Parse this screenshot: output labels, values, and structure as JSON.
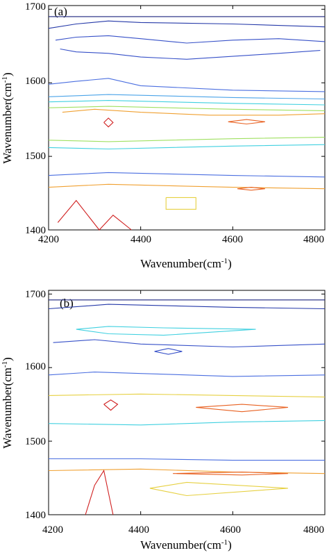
{
  "figure": {
    "background": "#ffffff",
    "panels": [
      {
        "label": "(a)",
        "xlabel": "Wavenumber(cm",
        "xlabel_sup": "-1",
        "xlabel_close": ")",
        "ylabel": "Wavenumber(cm",
        "ylabel_sup": "-1",
        "ylabel_close": ")",
        "xticks": [
          "4200",
          "4400",
          "4600",
          "4800"
        ],
        "yticks": [
          "1700",
          "1600",
          "1500",
          "1400"
        ]
      },
      {
        "label": "(b)",
        "xlabel": "Wavenumber(cm",
        "xlabel_sup": "-1",
        "xlabel_close": ")",
        "ylabel": "Wavenumber(cm",
        "ylabel_sup": "-1",
        "ylabel_close": ")",
        "xticks": [
          "4200",
          "4400",
          "4600",
          "4800"
        ],
        "yticks": [
          "1700",
          "1600",
          "1500",
          "1400"
        ]
      }
    ]
  },
  "chart_data": [
    {
      "type": "contour",
      "panel": "(a)",
      "xlabel": "Wavenumber(cm-1)",
      "ylabel": "Wavenumber(cm-1)",
      "xlim": [
        4200,
        4800
      ],
      "ylim": [
        1400,
        1705
      ],
      "grid": false,
      "colormap": [
        "#1a237e",
        "#2438a8",
        "#3650c8",
        "#4a6ee0",
        "#4aa3e8",
        "#3fd0e0",
        "#4fe0b0",
        "#9fe060",
        "#e6d040",
        "#f0a030",
        "#e86020",
        "#d02020"
      ],
      "contours": [
        {
          "level": 1,
          "color": "#1a237e",
          "x": [
            4200,
            4800
          ],
          "y": [
            1690,
            1690
          ]
        },
        {
          "level": 2,
          "color": "#2438a8",
          "x": [
            4200,
            4260,
            4330,
            4400,
            4600,
            4800
          ],
          "y": [
            1674,
            1680,
            1684,
            1682,
            1680,
            1676
          ]
        },
        {
          "level": 3,
          "color": "#3650c8",
          "x": [
            4215,
            4260,
            4330,
            4400,
            4500,
            4600,
            4700,
            4800
          ],
          "y": [
            1658,
            1662,
            1664,
            1660,
            1654,
            1658,
            1660,
            1656
          ]
        },
        {
          "level": 3,
          "color": "#3650c8",
          "x": [
            4225,
            4260,
            4330,
            4400,
            4500,
            4600,
            4700,
            4790
          ],
          "y": [
            1646,
            1642,
            1640,
            1635,
            1632,
            1636,
            1640,
            1644
          ]
        },
        {
          "level": 4,
          "color": "#4a6ee0",
          "x": [
            4200,
            4260,
            4330,
            4400,
            4600,
            4800
          ],
          "y": [
            1598,
            1602,
            1606,
            1596,
            1590,
            1588
          ]
        },
        {
          "level": 5,
          "color": "#4aa3e8",
          "x": [
            4200,
            4330,
            4600,
            4800
          ],
          "y": [
            1581,
            1584,
            1580,
            1578
          ]
        },
        {
          "level": 6,
          "color": "#3fd0e0",
          "x": [
            4200,
            4330,
            4600,
            4800
          ],
          "y": [
            1574,
            1576,
            1572,
            1570
          ]
        },
        {
          "level": 8,
          "color": "#9fe060",
          "x": [
            4200,
            4330,
            4600,
            4800
          ],
          "y": [
            1566,
            1568,
            1564,
            1562
          ]
        },
        {
          "level": 10,
          "color": "#f0a030",
          "x": [
            4230,
            4300,
            4400,
            4550,
            4700,
            4800
          ],
          "y": [
            1560,
            1564,
            1560,
            1556,
            1556,
            1558
          ]
        },
        {
          "level": 12,
          "color": "#d02020",
          "x": [
            4320,
            4330,
            4340,
            4330,
            4320
          ],
          "y": [
            1546,
            1552,
            1546,
            1540,
            1546
          ]
        },
        {
          "level": 11,
          "color": "#e86020",
          "x": [
            4590,
            4630,
            4670,
            4630,
            4590
          ],
          "y": [
            1547,
            1550,
            1547,
            1544,
            1547
          ]
        },
        {
          "level": 8,
          "color": "#9fe060",
          "x": [
            4200,
            4330,
            4600,
            4800
          ],
          "y": [
            1522,
            1520,
            1524,
            1526
          ]
        },
        {
          "level": 6,
          "color": "#3fd0e0",
          "x": [
            4200,
            4330,
            4600,
            4800
          ],
          "y": [
            1512,
            1510,
            1514,
            1516
          ]
        },
        {
          "level": 4,
          "color": "#4a6ee0",
          "x": [
            4200,
            4330,
            4600,
            4800
          ],
          "y": [
            1474,
            1478,
            1474,
            1472
          ]
        },
        {
          "level": 10,
          "color": "#f0a030",
          "x": [
            4200,
            4330,
            4600,
            4800
          ],
          "y": [
            1458,
            1462,
            1458,
            1456
          ]
        },
        {
          "level": 11,
          "color": "#e86020",
          "x": [
            4610,
            4640,
            4670,
            4640,
            4610
          ],
          "y": [
            1456,
            1458,
            1456,
            1454,
            1456
          ]
        },
        {
          "level": 9,
          "color": "#e6d040",
          "x": [
            4455,
            4520,
            4520,
            4455,
            4455
          ],
          "y": [
            1444,
            1444,
            1428,
            1428,
            1444
          ]
        },
        {
          "level": 12,
          "color": "#d02020",
          "x": [
            4220,
            4260,
            4310,
            4340,
            4380
          ],
          "y": [
            1410,
            1440,
            1400,
            1420,
            1400
          ]
        }
      ]
    },
    {
      "type": "contour",
      "panel": "(b)",
      "xlabel": "Wavenumber(cm-1)",
      "ylabel": "Wavenumber(cm-1)",
      "xlim": [
        4200,
        4800
      ],
      "ylim": [
        1400,
        1705
      ],
      "grid": false,
      "colormap": [
        "#1a237e",
        "#2438a8",
        "#3650c8",
        "#4a6ee0",
        "#4aa3e8",
        "#3fd0e0",
        "#4fe0b0",
        "#9fe060",
        "#e6d040",
        "#f0a030",
        "#e86020",
        "#d02020"
      ],
      "contours": [
        {
          "level": 1,
          "color": "#1a237e",
          "x": [
            4200,
            4800
          ],
          "y": [
            1692,
            1692
          ]
        },
        {
          "level": 2,
          "color": "#2438a8",
          "x": [
            4200,
            4330,
            4600,
            4800
          ],
          "y": [
            1680,
            1686,
            1682,
            1680
          ]
        },
        {
          "level": 6,
          "color": "#3fd0e0",
          "x": [
            4260,
            4330,
            4450,
            4650,
            4450,
            4330,
            4260
          ],
          "y": [
            1652,
            1656,
            1654,
            1652,
            1644,
            1646,
            1652
          ]
        },
        {
          "level": 3,
          "color": "#3650c8",
          "x": [
            4210,
            4300,
            4400,
            4600,
            4800
          ],
          "y": [
            1634,
            1638,
            1632,
            1628,
            1632
          ]
        },
        {
          "level": 3,
          "color": "#3650c8",
          "x": [
            4460,
            4490,
            4460,
            4430,
            4460
          ],
          "y": [
            1626,
            1622,
            1618,
            1622,
            1626
          ]
        },
        {
          "level": 4,
          "color": "#4a6ee0",
          "x": [
            4200,
            4300,
            4400,
            4600,
            4800
          ],
          "y": [
            1590,
            1594,
            1592,
            1588,
            1590
          ]
        },
        {
          "level": 12,
          "color": "#d02020",
          "x": [
            4320,
            4335,
            4350,
            4335,
            4320
          ],
          "y": [
            1550,
            1556,
            1550,
            1542,
            1550
          ]
        },
        {
          "level": 11,
          "color": "#e86020",
          "x": [
            4520,
            4620,
            4720,
            4620,
            4520
          ],
          "y": [
            1546,
            1550,
            1546,
            1540,
            1546
          ]
        },
        {
          "level": 9,
          "color": "#e6d040",
          "x": [
            4200,
            4400,
            4600,
            4800
          ],
          "y": [
            1562,
            1564,
            1562,
            1560
          ]
        },
        {
          "level": 6,
          "color": "#3fd0e0",
          "x": [
            4200,
            4400,
            4600,
            4800
          ],
          "y": [
            1524,
            1522,
            1526,
            1528
          ]
        },
        {
          "level": 4,
          "color": "#4a6ee0",
          "x": [
            4200,
            4400,
            4600,
            4800
          ],
          "y": [
            1476,
            1476,
            1474,
            1474
          ]
        },
        {
          "level": 10,
          "color": "#f0a030",
          "x": [
            4200,
            4400,
            4600,
            4800
          ],
          "y": [
            1460,
            1462,
            1458,
            1456
          ]
        },
        {
          "level": 11,
          "color": "#e86020",
          "x": [
            4470,
            4620,
            4720,
            4620,
            4470
          ],
          "y": [
            1456,
            1458,
            1456,
            1454,
            1456
          ]
        },
        {
          "level": 9,
          "color": "#e6d040",
          "x": [
            4420,
            4500,
            4720,
            4500,
            4420
          ],
          "y": [
            1436,
            1444,
            1436,
            1426,
            1436
          ]
        },
        {
          "level": 12,
          "color": "#d02020",
          "x": [
            4280,
            4300,
            4320,
            4330,
            4340
          ],
          "y": [
            1400,
            1440,
            1460,
            1430,
            1400
          ]
        }
      ]
    }
  ]
}
